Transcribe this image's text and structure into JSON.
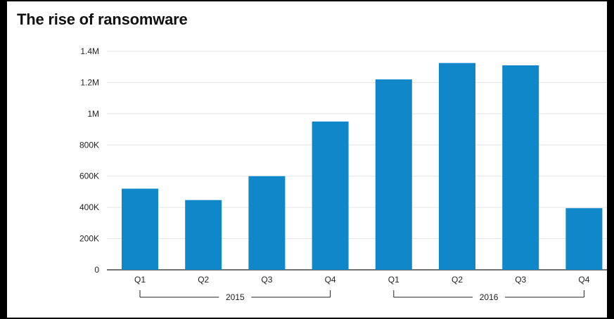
{
  "chart_data": {
    "type": "bar",
    "title": "The rise of ransomware",
    "xlabel": "",
    "ylabel": "",
    "categories": [
      "Q1",
      "Q2",
      "Q3",
      "Q4",
      "Q1",
      "Q2",
      "Q3",
      "Q4"
    ],
    "groups": [
      {
        "label": "2015",
        "categories": [
          "Q1",
          "Q2",
          "Q3",
          "Q4"
        ]
      },
      {
        "label": "2016",
        "categories": [
          "Q1",
          "Q2",
          "Q3",
          "Q4"
        ]
      }
    ],
    "values": [
      520000,
      447000,
      600000,
      950000,
      1220000,
      1325000,
      1310000,
      395000
    ],
    "ylim": [
      0,
      1400000
    ],
    "yticks": [
      0,
      200000,
      400000,
      600000,
      800000,
      1000000,
      1200000,
      1400000
    ],
    "ytick_labels": [
      "0",
      "200K",
      "400K",
      "600K",
      "800K",
      "1M",
      "1.2M",
      "1.4M"
    ],
    "bar_color": "#1087c9",
    "grid": true,
    "legend": false
  }
}
